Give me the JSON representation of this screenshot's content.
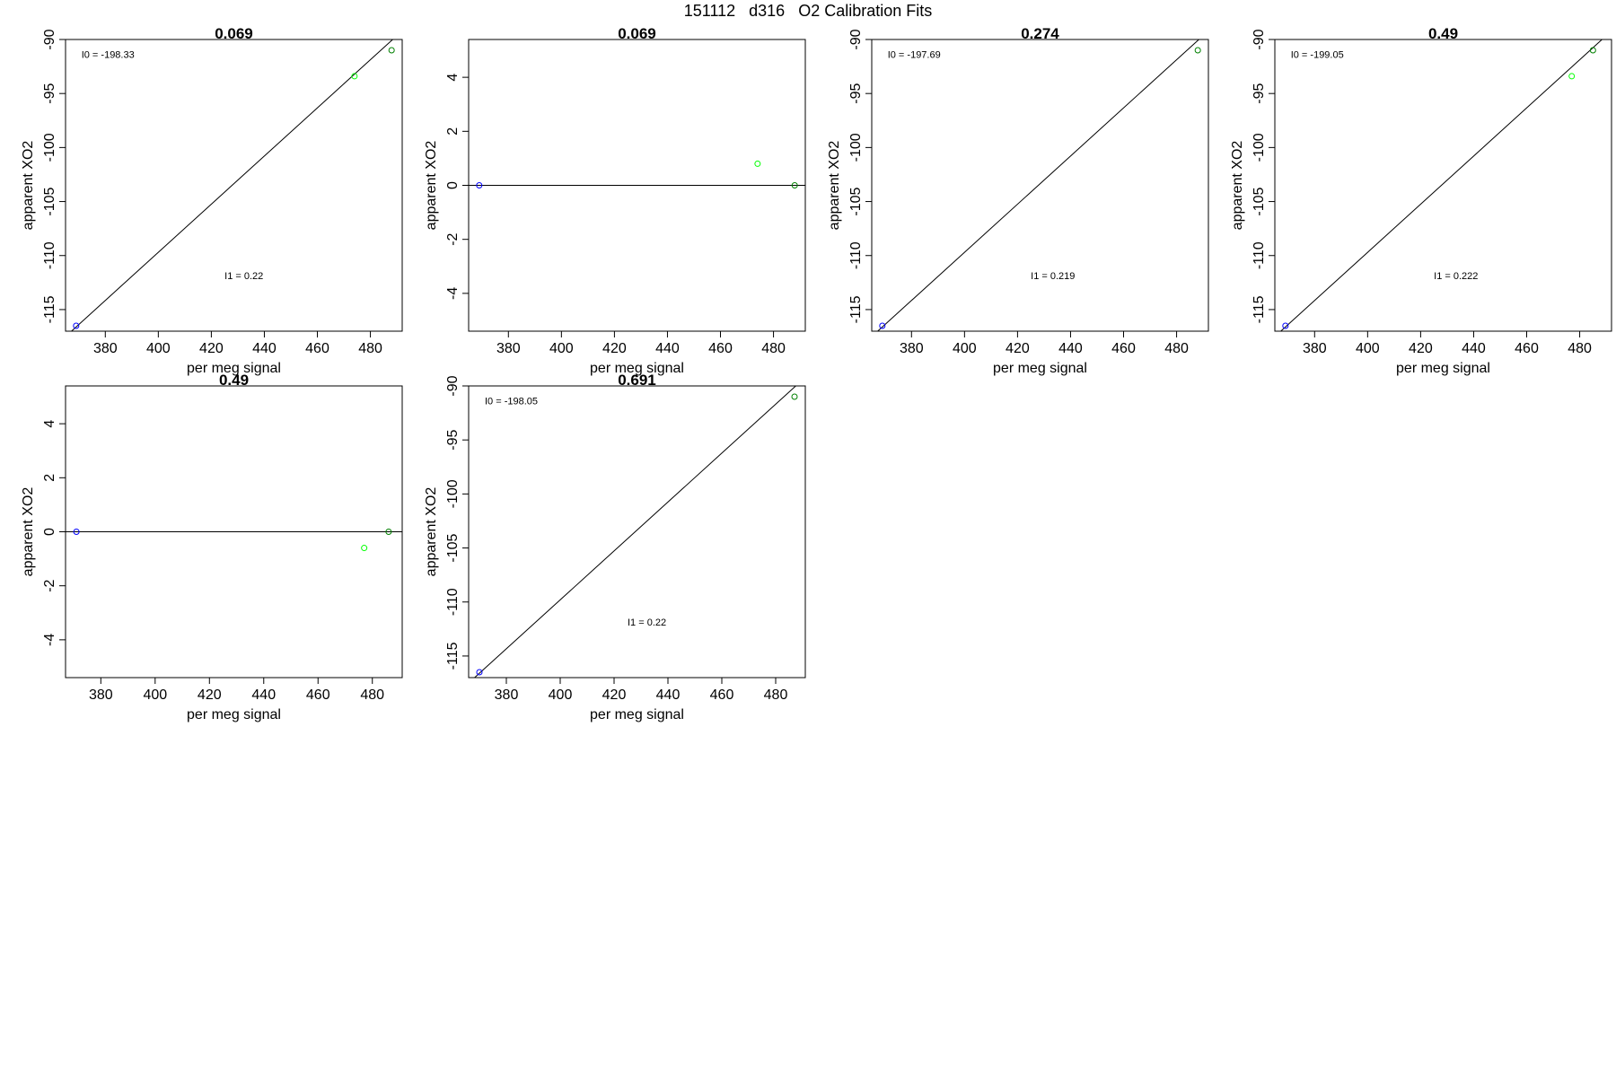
{
  "page": {
    "title": "151112   d316   O2 Calibration Fits"
  },
  "chart_data": [
    {
      "type": "scatter",
      "title": "0.069",
      "xlabel": "per meg signal",
      "ylabel": "apparent XO2",
      "xlim": [
        365,
        492
      ],
      "ylim": [
        -117,
        -90
      ],
      "xticks": [
        "380",
        "400",
        "420",
        "440",
        "460",
        "480"
      ],
      "yticks": [
        "-90",
        "-95",
        "-100",
        "-105",
        "-110",
        "-115"
      ],
      "points": [
        {
          "x": 369,
          "y": -116.5,
          "color": "#0000ff"
        },
        {
          "x": 474,
          "y": -93.4,
          "color": "#00ff00"
        },
        {
          "x": 488,
          "y": -91.0,
          "color": "#008000"
        }
      ],
      "fit_line": [
        [
          365,
          -117.5
        ],
        [
          492,
          -89.2
        ]
      ],
      "annotations": [
        {
          "text": "I0 =  -198.33",
          "x": 371,
          "y": -91.7
        },
        {
          "text": "I1 =  0.22",
          "x": 425,
          "y": -112.2
        }
      ]
    },
    {
      "type": "scatter",
      "title": "0.069",
      "xlabel": "per meg signal",
      "ylabel": "apparent XO2",
      "xlim": [
        365,
        492
      ],
      "ylim": [
        -5.4,
        5.4
      ],
      "xticks": [
        "380",
        "400",
        "420",
        "440",
        "460",
        "480"
      ],
      "yticks": [
        "-4",
        "-2",
        "0",
        "2",
        "4"
      ],
      "points": [
        {
          "x": 369,
          "y": 0,
          "color": "#0000ff"
        },
        {
          "x": 474,
          "y": 0.8,
          "color": "#00ff00"
        },
        {
          "x": 488,
          "y": 0,
          "color": "#008000"
        }
      ],
      "fit_line": [
        [
          365,
          0
        ],
        [
          492,
          0
        ]
      ],
      "annotations": []
    },
    {
      "type": "scatter",
      "title": "0.274",
      "xlabel": "per meg signal",
      "ylabel": "apparent XO2",
      "xlim": [
        365,
        492
      ],
      "ylim": [
        -117,
        -90
      ],
      "xticks": [
        "380",
        "400",
        "420",
        "440",
        "460",
        "480"
      ],
      "yticks": [
        "-90",
        "-95",
        "-100",
        "-105",
        "-110",
        "-115"
      ],
      "points": [
        {
          "x": 369,
          "y": -116.5,
          "color": "#0000ff"
        },
        {
          "x": 488,
          "y": -91.0,
          "color": "#008000"
        }
      ],
      "fit_line": [
        [
          365,
          -117.5
        ],
        [
          492,
          -89.2
        ]
      ],
      "annotations": [
        {
          "text": "I0 =  -197.69",
          "x": 371,
          "y": -91.7
        },
        {
          "text": "I1 =  0.219",
          "x": 425,
          "y": -112.2
        }
      ]
    },
    {
      "type": "scatter",
      "title": "0.49",
      "xlabel": "per meg signal",
      "ylabel": "apparent XO2",
      "xlim": [
        365,
        492
      ],
      "ylim": [
        -117,
        -90
      ],
      "xticks": [
        "380",
        "400",
        "420",
        "440",
        "460",
        "480"
      ],
      "yticks": [
        "-90",
        "-95",
        "-100",
        "-105",
        "-110",
        "-115"
      ],
      "points": [
        {
          "x": 369,
          "y": -116.5,
          "color": "#0000ff"
        },
        {
          "x": 477,
          "y": -93.4,
          "color": "#00ff00"
        },
        {
          "x": 485,
          "y": -91.0,
          "color": "#008000"
        }
      ],
      "fit_line": [
        [
          365,
          -117.5
        ],
        [
          492,
          -89.2
        ]
      ],
      "annotations": [
        {
          "text": "I0 =  -199.05",
          "x": 371,
          "y": -91.7
        },
        {
          "text": "I1 =  0.222",
          "x": 425,
          "y": -112.2
        }
      ]
    },
    {
      "type": "scatter",
      "title": "0.49",
      "xlabel": "per meg signal",
      "ylabel": "apparent XO2",
      "xlim": [
        367,
        491
      ],
      "ylim": [
        -5.4,
        5.4
      ],
      "xticks": [
        "380",
        "400",
        "420",
        "440",
        "460",
        "480"
      ],
      "yticks": [
        "-4",
        "-2",
        "0",
        "2",
        "4"
      ],
      "points": [
        {
          "x": 371,
          "y": 0,
          "color": "#0000ff"
        },
        {
          "x": 477,
          "y": -0.6,
          "color": "#00ff00"
        },
        {
          "x": 486,
          "y": 0,
          "color": "#008000"
        }
      ],
      "fit_line": [
        [
          367,
          0
        ],
        [
          491,
          0
        ]
      ],
      "annotations": []
    },
    {
      "type": "scatter",
      "title": "0.691",
      "xlabel": "per meg signal",
      "ylabel": "apparent XO2",
      "xlim": [
        366,
        491
      ],
      "ylim": [
        -117,
        -90
      ],
      "xticks": [
        "380",
        "400",
        "420",
        "440",
        "460",
        "480"
      ],
      "yticks": [
        "-90",
        "-95",
        "-100",
        "-105",
        "-110",
        "-115"
      ],
      "points": [
        {
          "x": 370,
          "y": -116.5,
          "color": "#0000ff"
        },
        {
          "x": 487,
          "y": -91.0,
          "color": "#008000"
        }
      ],
      "fit_line": [
        [
          366,
          -117.5
        ],
        [
          491,
          -89.2
        ]
      ],
      "annotations": [
        {
          "text": "I0 =  -198.05",
          "x": 372,
          "y": -91.7
        },
        {
          "text": "I1 =  0.22",
          "x": 425,
          "y": -112.2
        }
      ]
    }
  ]
}
